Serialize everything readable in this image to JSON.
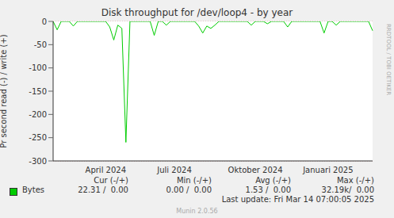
{
  "chart_data": {
    "type": "line",
    "title": "Disk throughput for /dev/loop4 - by year",
    "y_label": "Pr second read (-) / write (+)",
    "categories": [
      null,
      null,
      null,
      null,
      null,
      null,
      null,
      null,
      null,
      null,
      null,
      null,
      null,
      "April 2024",
      null,
      null,
      null,
      null,
      null,
      null,
      null,
      null,
      null,
      null,
      null,
      null,
      null,
      null,
      null,
      null,
      "Juli 2024",
      null,
      null,
      null,
      null,
      null,
      null,
      null,
      null,
      null,
      null,
      null,
      null,
      null,
      null,
      null,
      null,
      null,
      null,
      null,
      "Oktober 2024",
      null,
      null,
      null,
      null,
      null,
      null,
      null,
      null,
      null,
      null,
      null,
      null,
      null,
      null,
      null,
      null,
      null,
      "Januari 2025",
      null,
      null,
      null,
      null,
      null,
      null,
      null,
      null,
      null,
      null,
      null
    ],
    "series": [
      {
        "name": "Bytes",
        "color": "#00cc00",
        "values": [
          0,
          -18,
          0,
          0,
          0,
          -10,
          0,
          0,
          0,
          0,
          0,
          0,
          0,
          0,
          -12,
          -40,
          -8,
          -15,
          -260,
          0,
          0,
          0,
          0,
          0,
          0,
          -30,
          0,
          0,
          -8,
          0,
          0,
          0,
          0,
          0,
          0,
          0,
          -10,
          -25,
          -10,
          -15,
          -8,
          0,
          0,
          0,
          0,
          0,
          0,
          0,
          0,
          -8,
          0,
          0,
          0,
          -5,
          0,
          0,
          0,
          0,
          -12,
          0,
          0,
          0,
          0,
          0,
          0,
          0,
          0,
          -25,
          0,
          0,
          -8,
          0,
          0,
          0,
          0,
          0,
          0,
          0,
          0,
          -20
        ]
      }
    ],
    "ylim": [
      -300,
      0
    ],
    "yticks": [
      0,
      -50,
      -100,
      -150,
      -200,
      -250,
      -300
    ],
    "grid": true,
    "legend_table": {
      "columns": [
        "Cur (-/+)",
        "Min (-/+)",
        "Avg (-/+)",
        "Max (-/+)"
      ],
      "rows": [
        {
          "label": "Bytes",
          "cells": [
            "22.31 /  0.00",
            "0.00 /  0.00",
            "1.53 /  0.00",
            "32.19k/  0.00"
          ]
        }
      ]
    },
    "last_update": "Last update: Fri Mar 14 07:00:05 2025",
    "generator": "Munin 2.0.56",
    "side_text": "RRDTOOL / TOBI OETIKER"
  }
}
